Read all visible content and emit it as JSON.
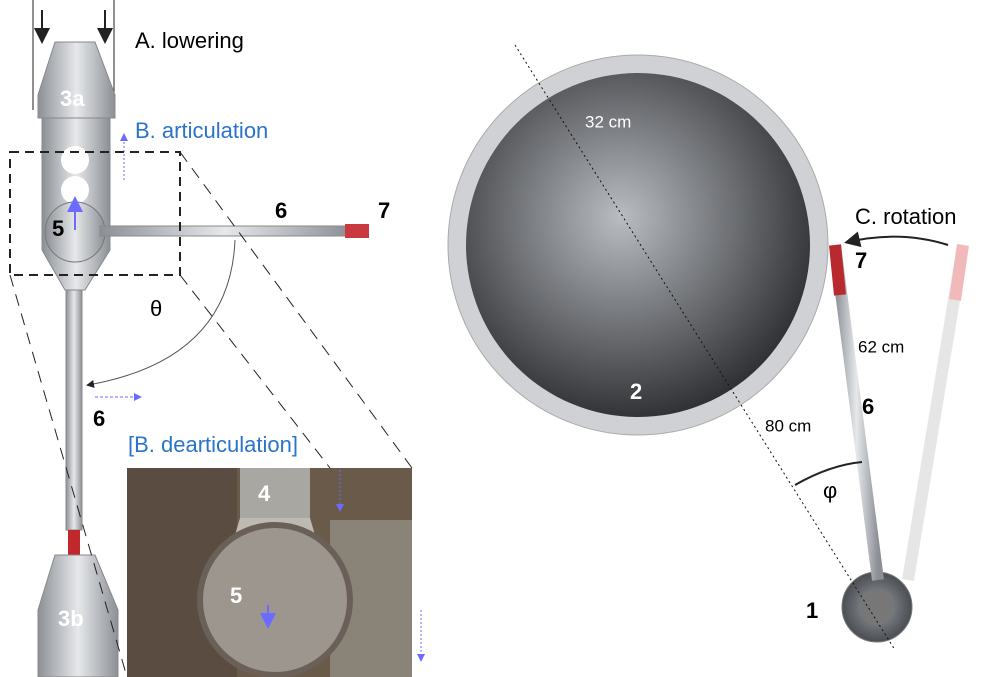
{
  "labels": {
    "lowering": "A. lowering",
    "part_3a": "3a",
    "articulation": "B. articulation",
    "part_5_top": "5",
    "part_6_horizontal": "6",
    "part_7_left": "7",
    "theta": "θ",
    "part_6_vertical": "6",
    "dearticulation": "[B. dearticulation]",
    "part_4": "4",
    "part_5_photo": "5",
    "part_3b": "3b",
    "diameter": "32 cm",
    "rotation": "C. rotation",
    "part_7_right": "7",
    "length_62": "62 cm",
    "part_2": "2",
    "part_6_right": "6",
    "length_80": "80 cm",
    "phi": "φ",
    "part_1": "1"
  }
}
